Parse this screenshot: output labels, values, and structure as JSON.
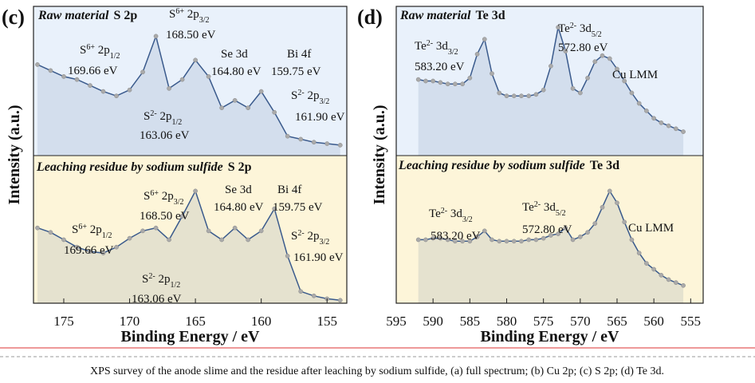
{
  "chart_data": [
    {
      "type": "line",
      "panel_label": "(c)",
      "xlabel": "Binding Energy / eV",
      "ylabel": "Intensity (a.u.)",
      "xlim": [
        177.3,
        153.5
      ],
      "xticks": [
        175,
        170,
        165,
        160,
        155
      ],
      "ylim": [
        0,
        100
      ],
      "subplots": [
        {
          "title": "Raw material",
          "element": "S 2p",
          "background": "#e9f1fb",
          "color": "#3a5a8c",
          "x": [
            177,
            176,
            175,
            174,
            173,
            172,
            171,
            170,
            169,
            168,
            167,
            166,
            165,
            164,
            163,
            162,
            161,
            160,
            159,
            158,
            157,
            156,
            155,
            154
          ],
          "values": [
            61,
            57,
            53,
            51,
            47,
            43,
            40,
            44,
            56,
            80,
            45,
            51,
            64,
            53,
            32,
            37,
            32,
            43,
            29,
            13,
            11,
            9,
            8,
            7
          ],
          "annotations": [
            [
              [
                {
                  "t": "S"
                },
                {
                  "t": "6+",
                  "s": "sup"
                },
                {
                  "t": " 2p"
                },
                {
                  "t": "1/2",
                  "s": "sub"
                }
              ],
              [
                {
                  "t": "169.66 eV"
                }
              ]
            ],
            [
              [
                {
                  "t": "S"
                },
                {
                  "t": "6+",
                  "s": "sup"
                },
                {
                  "t": " 2p"
                },
                {
                  "t": "3/2",
                  "s": "sub"
                }
              ],
              [
                {
                  "t": "168.50 eV"
                }
              ]
            ],
            [
              [
                {
                  "t": "Se 3d"
                }
              ],
              [
                {
                  "t": "164.80 eV"
                }
              ]
            ],
            [
              [
                {
                  "t": "Bi 4f"
                }
              ],
              [
                {
                  "t": "159.75 eV"
                }
              ]
            ],
            [
              [
                {
                  "t": "S"
                },
                {
                  "t": "2-",
                  "s": "sup"
                },
                {
                  "t": " 2p"
                },
                {
                  "t": "3/2",
                  "s": "sub"
                }
              ],
              [
                {
                  "t": "161.90 eV"
                }
              ]
            ],
            [
              [
                {
                  "t": "S"
                },
                {
                  "t": "2-",
                  "s": "sup"
                },
                {
                  "t": " 2p"
                },
                {
                  "t": "1/2",
                  "s": "sub"
                }
              ],
              [
                {
                  "t": "163.06 eV"
                }
              ]
            ]
          ]
        },
        {
          "title": "Leaching residue by sodium sulfide",
          "element": "S 2p",
          "background": "#fdf5d9",
          "color": "#3a5a8c",
          "x": [
            177,
            176,
            175,
            174,
            173,
            172,
            171,
            170,
            169,
            168,
            167,
            166,
            165,
            164,
            163,
            162,
            161,
            160,
            159,
            158,
            157,
            156,
            155,
            154
          ],
          "values": [
            51,
            48,
            43,
            38,
            35,
            34,
            38,
            44,
            49,
            51,
            43,
            59,
            76,
            49,
            43,
            51,
            43,
            49,
            64,
            32,
            8,
            5,
            3,
            2
          ],
          "annotations": [
            [
              [
                {
                  "t": "S"
                },
                {
                  "t": "6+",
                  "s": "sup"
                },
                {
                  "t": " 2p"
                },
                {
                  "t": "1/2",
                  "s": "sub"
                }
              ],
              [
                {
                  "t": "169.66 eV"
                }
              ]
            ],
            [
              [
                {
                  "t": "S"
                },
                {
                  "t": "6+",
                  "s": "sup"
                },
                {
                  "t": " 2p"
                },
                {
                  "t": "3/2",
                  "s": "sub"
                }
              ],
              [
                {
                  "t": "168.50 eV"
                }
              ]
            ],
            [
              [
                {
                  "t": "Se 3d"
                }
              ],
              [
                {
                  "t": "164.80 eV"
                }
              ]
            ],
            [
              [
                {
                  "t": "Bi 4f"
                }
              ],
              [
                {
                  "t": "159.75 eV"
                }
              ]
            ],
            [
              [
                {
                  "t": "S"
                },
                {
                  "t": "2-",
                  "s": "sup"
                },
                {
                  "t": " 2p"
                },
                {
                  "t": "3/2",
                  "s": "sub"
                }
              ],
              [
                {
                  "t": "161.90 eV"
                }
              ]
            ],
            [
              [
                {
                  "t": "S"
                },
                {
                  "t": "2-",
                  "s": "sup"
                },
                {
                  "t": " 2p"
                },
                {
                  "t": "1/2",
                  "s": "sub"
                }
              ],
              [
                {
                  "t": "163.06 eV"
                }
              ]
            ]
          ]
        }
      ]
    },
    {
      "type": "line",
      "panel_label": "(d)",
      "xlabel": "Binding Energy / eV",
      "ylabel": "Intensity (a.u.)",
      "xlim": [
        595,
        553.3
      ],
      "xticks": [
        595,
        590,
        585,
        580,
        575,
        570,
        565,
        560,
        555
      ],
      "ylim": [
        0,
        100
      ],
      "subplots": [
        {
          "title": "Raw material",
          "element": "Te 3d",
          "background": "#e9f1fb",
          "color": "#3a5a8c",
          "x": [
            592,
            591,
            590,
            589,
            588,
            587,
            586,
            585,
            584,
            583,
            582,
            581,
            580,
            579,
            578,
            577,
            576,
            575,
            574,
            573,
            572,
            571,
            570,
            569,
            568,
            567,
            566,
            565,
            564,
            563,
            562,
            561,
            560,
            559,
            558,
            557,
            556
          ],
          "values": [
            51,
            50,
            50,
            49,
            48,
            48,
            48,
            52,
            68,
            78,
            55,
            42,
            40,
            40,
            40,
            40,
            41,
            44,
            60,
            86,
            70,
            45,
            42,
            52,
            63,
            67,
            65,
            58,
            50,
            42,
            35,
            30,
            25,
            22,
            20,
            18,
            16
          ],
          "annotations": [
            [
              [
                {
                  "t": "Te"
                },
                {
                  "t": "2-",
                  "s": "sup"
                },
                {
                  "t": "  3d"
                },
                {
                  "t": "3/2",
                  "s": "sub"
                }
              ],
              [
                {
                  "t": "583.20 eV"
                }
              ]
            ],
            [
              [
                {
                  "t": "Te"
                },
                {
                  "t": "2-",
                  "s": "sup"
                },
                {
                  "t": "  3d"
                },
                {
                  "t": "5/2",
                  "s": "sub"
                }
              ],
              [
                {
                  "t": "572.80 eV"
                }
              ]
            ],
            [
              [
                {
                  "t": "Cu LMM"
                }
              ]
            ]
          ]
        },
        {
          "title": "Leaching residue by sodium sulfide",
          "element": "Te 3d",
          "background": "#fdf5d9",
          "color": "#3a5a8c",
          "x": [
            592,
            591,
            590,
            589,
            588,
            587,
            586,
            585,
            584,
            583,
            582,
            581,
            580,
            579,
            578,
            577,
            576,
            575,
            574,
            573,
            572,
            571,
            570,
            569,
            568,
            567,
            566,
            565,
            564,
            563,
            562,
            561,
            560,
            559,
            558,
            557,
            556
          ],
          "values": [
            43,
            43,
            44,
            44,
            43,
            42,
            42,
            42,
            45,
            49,
            43,
            42,
            42,
            42,
            42,
            43,
            43,
            44,
            46,
            47,
            51,
            43,
            45,
            48,
            54,
            65,
            76,
            68,
            55,
            43,
            34,
            27,
            23,
            19,
            16,
            14,
            12
          ],
          "annotations": [
            [
              [
                {
                  "t": "Te"
                },
                {
                  "t": "2-",
                  "s": "sup"
                },
                {
                  "t": "  3d"
                },
                {
                  "t": "3/2",
                  "s": "sub"
                }
              ],
              [
                {
                  "t": "583.20 eV"
                }
              ]
            ],
            [
              [
                {
                  "t": "Te"
                },
                {
                  "t": "2-",
                  "s": "sup"
                },
                {
                  "t": "  3d"
                },
                {
                  "t": "5/2",
                  "s": "sub"
                }
              ],
              [
                {
                  "t": "572.80 eV"
                }
              ]
            ],
            [
              [
                {
                  "t": "Cu LMM"
                }
              ]
            ]
          ]
        }
      ]
    }
  ],
  "caption": "XPS survey of the anode slime and the residue after leaching by sodium sulfide, (a) full spectrum; (b) Cu 2p; (c) S 2p; (d) Te 3d."
}
